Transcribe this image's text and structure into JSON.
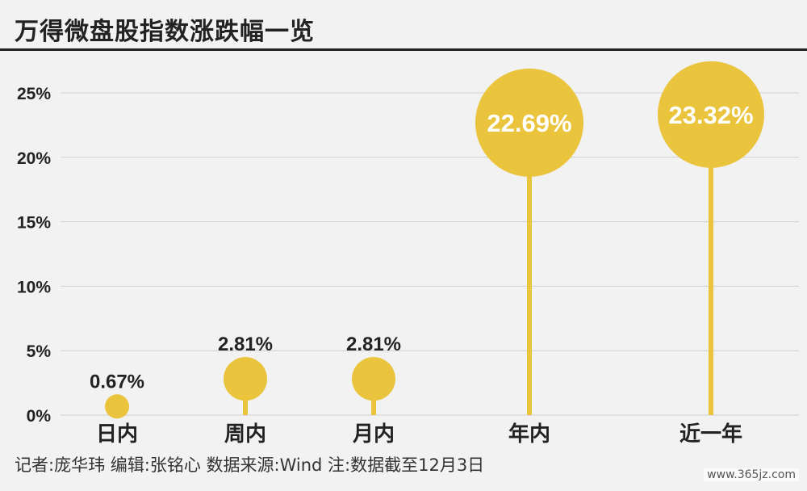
{
  "title": "万得微盘股指数涨跌幅一览",
  "footer": "记者:庞华玮  编辑:张铭心  数据来源:Wind  注:数据截至12月3日",
  "watermark": "www.365jz.com",
  "colors": {
    "marker": "#e9c43c",
    "grid": "#d0d0d0",
    "text": "#222222"
  },
  "chart_data": {
    "type": "lollipop",
    "categories": [
      "日内",
      "周内",
      "月内",
      "年内",
      "近一年"
    ],
    "values": [
      0.67,
      2.81,
      2.81,
      22.69,
      23.32
    ],
    "labels": [
      "0.67%",
      "2.81%",
      "2.81%",
      "22.69%",
      "23.32%"
    ],
    "ylim": [
      0,
      25
    ],
    "yticks": [
      0,
      5,
      10,
      15,
      20,
      25
    ],
    "ytick_labels": [
      "0%",
      "5%",
      "10%",
      "15%",
      "20%",
      "25%"
    ],
    "grid": true
  }
}
